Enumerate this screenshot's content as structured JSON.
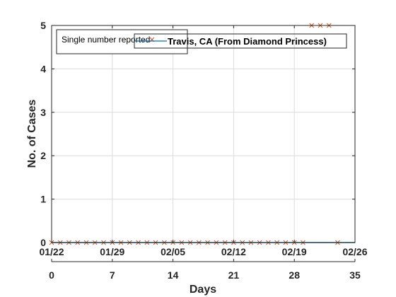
{
  "chart_data": {
    "type": "scatter",
    "title": "Travis, CA (From Diamond Princess)",
    "xlabel": "Days",
    "ylabel": "No. of Cases",
    "xlim": [
      0,
      35
    ],
    "ylim": [
      0,
      5
    ],
    "grid": true,
    "legend_position": "top-left",
    "x_ticks": [
      0,
      7,
      14,
      21,
      28,
      35
    ],
    "y_ticks": [
      0,
      1,
      2,
      3,
      4,
      5
    ],
    "date_ticks": [
      {
        "x": 0,
        "label": "01/22"
      },
      {
        "x": 7,
        "label": "01/29"
      },
      {
        "x": 14,
        "label": "02/05"
      },
      {
        "x": 21,
        "label": "02/12"
      },
      {
        "x": 28,
        "label": "02/19"
      },
      {
        "x": 35,
        "label": "02/26"
      }
    ],
    "series": [
      {
        "name": "Single number reported",
        "kind": "markers",
        "marker": "x",
        "color": "#D95319",
        "x": [
          0,
          1,
          2,
          3,
          4,
          5,
          6,
          7,
          8,
          9,
          10,
          11,
          12,
          13,
          14,
          15,
          16,
          17,
          18,
          19,
          20,
          21,
          22,
          23,
          24,
          25,
          26,
          27,
          28,
          29,
          30,
          31,
          32,
          33
        ],
        "y": [
          0,
          0,
          0,
          0,
          0,
          0,
          0,
          0,
          0,
          0,
          0,
          0,
          0,
          0,
          0,
          0,
          0,
          0,
          0,
          0,
          0,
          0,
          0,
          0,
          0,
          0,
          0,
          0,
          0,
          0,
          5,
          5,
          5,
          0
        ]
      },
      {
        "kind": "line",
        "color": "#0072BD",
        "x": [
          0,
          35
        ],
        "y": [
          0,
          0
        ]
      }
    ]
  }
}
